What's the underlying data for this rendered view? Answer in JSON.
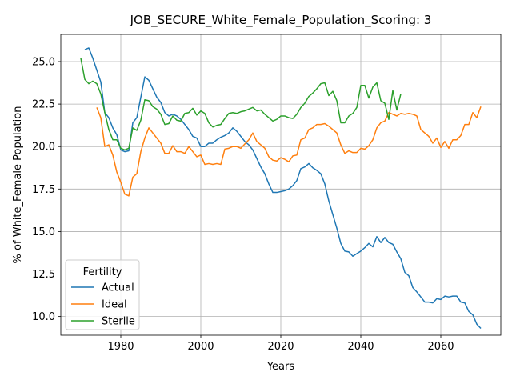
{
  "chart_data": {
    "type": "line",
    "title": "JOB_SECURE_White_Female_Population_Scoring: 3",
    "xlabel": "Years",
    "ylabel": "% of White_Female Population",
    "xlim": [
      1965,
      2075
    ],
    "ylim": [
      8.9,
      26.6
    ],
    "xticks": [
      1980,
      2000,
      2020,
      2040,
      2060
    ],
    "yticks": [
      10.0,
      12.5,
      15.0,
      17.5,
      20.0,
      22.5,
      25.0
    ],
    "grid": true,
    "legend": {
      "title": "Fertility",
      "placement": "lower-left"
    },
    "series": [
      {
        "name": "Actual",
        "color": "#1f77b4",
        "points": [
          [
            1971,
            25.7
          ],
          [
            1972,
            25.8
          ],
          [
            1973,
            25.2
          ],
          [
            1974,
            24.5
          ],
          [
            1975,
            23.8
          ],
          [
            1976,
            22.0
          ],
          [
            1977,
            21.7
          ],
          [
            1978,
            21.1
          ],
          [
            1979,
            20.7
          ],
          [
            1980,
            19.8
          ],
          [
            1981,
            19.7
          ],
          [
            1982,
            19.75
          ],
          [
            1983,
            21.4
          ],
          [
            1984,
            21.7
          ],
          [
            1985,
            22.9
          ],
          [
            1986,
            24.1
          ],
          [
            1987,
            23.9
          ],
          [
            1988,
            23.4
          ],
          [
            1989,
            22.9
          ],
          [
            1990,
            22.6
          ],
          [
            1991,
            22.0
          ],
          [
            1992,
            21.8
          ],
          [
            1993,
            21.9
          ],
          [
            1994,
            21.8
          ],
          [
            1995,
            21.6
          ],
          [
            1996,
            21.3
          ],
          [
            1997,
            21.0
          ],
          [
            1998,
            20.6
          ],
          [
            1999,
            20.5
          ],
          [
            2000,
            20.0
          ],
          [
            2001,
            20.0
          ],
          [
            2002,
            20.2
          ],
          [
            2003,
            20.2
          ],
          [
            2004,
            20.4
          ],
          [
            2005,
            20.55
          ],
          [
            2006,
            20.65
          ],
          [
            2007,
            20.8
          ],
          [
            2008,
            21.1
          ],
          [
            2009,
            20.9
          ],
          [
            2010,
            20.6
          ],
          [
            2011,
            20.3
          ],
          [
            2012,
            20.1
          ],
          [
            2013,
            19.8
          ],
          [
            2014,
            19.3
          ],
          [
            2015,
            18.8
          ],
          [
            2016,
            18.4
          ],
          [
            2017,
            17.8
          ],
          [
            2018,
            17.3
          ],
          [
            2019,
            17.3
          ],
          [
            2020,
            17.35
          ],
          [
            2021,
            17.4
          ],
          [
            2022,
            17.5
          ],
          [
            2023,
            17.7
          ],
          [
            2024,
            18.0
          ],
          [
            2025,
            18.7
          ],
          [
            2026,
            18.8
          ],
          [
            2027,
            19.0
          ],
          [
            2028,
            18.75
          ],
          [
            2029,
            18.6
          ],
          [
            2030,
            18.4
          ],
          [
            2031,
            17.8
          ],
          [
            2032,
            16.8
          ],
          [
            2033,
            16.0
          ],
          [
            2034,
            15.2
          ],
          [
            2035,
            14.3
          ],
          [
            2036,
            13.85
          ],
          [
            2037,
            13.8
          ],
          [
            2038,
            13.55
          ],
          [
            2039,
            13.7
          ],
          [
            2040,
            13.85
          ],
          [
            2041,
            14.05
          ],
          [
            2042,
            14.3
          ],
          [
            2043,
            14.1
          ],
          [
            2044,
            14.7
          ],
          [
            2045,
            14.35
          ],
          [
            2046,
            14.65
          ],
          [
            2047,
            14.35
          ],
          [
            2048,
            14.25
          ],
          [
            2049,
            13.8
          ],
          [
            2050,
            13.4
          ],
          [
            2051,
            12.6
          ],
          [
            2052,
            12.4
          ],
          [
            2053,
            11.7
          ],
          [
            2054,
            11.45
          ],
          [
            2055,
            11.15
          ],
          [
            2056,
            10.85
          ],
          [
            2057,
            10.85
          ],
          [
            2058,
            10.8
          ],
          [
            2059,
            11.05
          ],
          [
            2060,
            11.0
          ],
          [
            2061,
            11.2
          ],
          [
            2062,
            11.15
          ],
          [
            2063,
            11.2
          ],
          [
            2064,
            11.2
          ],
          [
            2065,
            10.85
          ],
          [
            2066,
            10.8
          ],
          [
            2067,
            10.3
          ],
          [
            2068,
            10.1
          ],
          [
            2069,
            9.55
          ],
          [
            2070,
            9.3
          ]
        ]
      },
      {
        "name": "Ideal",
        "color": "#ff7f0e",
        "points": [
          [
            1974,
            22.3
          ],
          [
            1975,
            21.7
          ],
          [
            1976,
            20.0
          ],
          [
            1977,
            20.1
          ],
          [
            1978,
            19.5
          ],
          [
            1979,
            18.5
          ],
          [
            1980,
            17.9
          ],
          [
            1981,
            17.2
          ],
          [
            1982,
            17.1
          ],
          [
            1983,
            18.2
          ],
          [
            1984,
            18.4
          ],
          [
            1985,
            19.7
          ],
          [
            1986,
            20.5
          ],
          [
            1987,
            21.1
          ],
          [
            1988,
            20.8
          ],
          [
            1989,
            20.5
          ],
          [
            1990,
            20.2
          ],
          [
            1991,
            19.6
          ],
          [
            1992,
            19.6
          ],
          [
            1993,
            20.05
          ],
          [
            1994,
            19.7
          ],
          [
            1995,
            19.7
          ],
          [
            1996,
            19.6
          ],
          [
            1997,
            20.0
          ],
          [
            1998,
            19.7
          ],
          [
            1999,
            19.4
          ],
          [
            2000,
            19.5
          ],
          [
            2001,
            18.95
          ],
          [
            2002,
            19.0
          ],
          [
            2003,
            18.95
          ],
          [
            2004,
            19.0
          ],
          [
            2005,
            18.95
          ],
          [
            2006,
            19.85
          ],
          [
            2007,
            19.9
          ],
          [
            2008,
            20.0
          ],
          [
            2009,
            20.0
          ],
          [
            2010,
            19.9
          ],
          [
            2011,
            20.15
          ],
          [
            2012,
            20.4
          ],
          [
            2013,
            20.8
          ],
          [
            2014,
            20.3
          ],
          [
            2015,
            20.1
          ],
          [
            2016,
            19.9
          ],
          [
            2017,
            19.4
          ],
          [
            2018,
            19.2
          ],
          [
            2019,
            19.15
          ],
          [
            2020,
            19.35
          ],
          [
            2021,
            19.25
          ],
          [
            2022,
            19.1
          ],
          [
            2023,
            19.45
          ],
          [
            2024,
            19.5
          ],
          [
            2025,
            20.4
          ],
          [
            2026,
            20.5
          ],
          [
            2027,
            21.0
          ],
          [
            2028,
            21.1
          ],
          [
            2029,
            21.3
          ],
          [
            2030,
            21.3
          ],
          [
            2031,
            21.35
          ],
          [
            2032,
            21.2
          ],
          [
            2033,
            21.0
          ],
          [
            2034,
            20.8
          ],
          [
            2035,
            20.1
          ],
          [
            2036,
            19.6
          ],
          [
            2037,
            19.75
          ],
          [
            2038,
            19.65
          ],
          [
            2039,
            19.65
          ],
          [
            2040,
            19.9
          ],
          [
            2041,
            19.85
          ],
          [
            2042,
            20.05
          ],
          [
            2043,
            20.4
          ],
          [
            2044,
            21.1
          ],
          [
            2045,
            21.4
          ],
          [
            2046,
            21.5
          ],
          [
            2047,
            22.0
          ],
          [
            2048,
            21.9
          ],
          [
            2049,
            21.8
          ],
          [
            2050,
            21.95
          ],
          [
            2051,
            21.9
          ],
          [
            2052,
            21.95
          ],
          [
            2053,
            21.9
          ],
          [
            2054,
            21.8
          ],
          [
            2055,
            21.0
          ],
          [
            2056,
            20.8
          ],
          [
            2057,
            20.6
          ],
          [
            2058,
            20.2
          ],
          [
            2059,
            20.5
          ],
          [
            2060,
            19.95
          ],
          [
            2061,
            20.3
          ],
          [
            2062,
            19.9
          ],
          [
            2063,
            20.4
          ],
          [
            2064,
            20.4
          ],
          [
            2065,
            20.65
          ],
          [
            2066,
            21.3
          ],
          [
            2067,
            21.3
          ],
          [
            2068,
            22.0
          ],
          [
            2069,
            21.7
          ],
          [
            2070,
            22.35
          ]
        ]
      },
      {
        "name": "Sterile",
        "color": "#2ca02c",
        "points": [
          [
            1970,
            25.2
          ],
          [
            1971,
            23.95
          ],
          [
            1972,
            23.7
          ],
          [
            1973,
            23.85
          ],
          [
            1974,
            23.7
          ],
          [
            1975,
            23.1
          ],
          [
            1976,
            22.0
          ],
          [
            1977,
            21.0
          ],
          [
            1978,
            20.4
          ],
          [
            1979,
            20.4
          ],
          [
            1980,
            19.9
          ],
          [
            1981,
            19.8
          ],
          [
            1982,
            19.9
          ],
          [
            1983,
            21.1
          ],
          [
            1984,
            20.95
          ],
          [
            1985,
            21.55
          ],
          [
            1986,
            22.75
          ],
          [
            1987,
            22.7
          ],
          [
            1988,
            22.35
          ],
          [
            1989,
            22.2
          ],
          [
            1990,
            21.9
          ],
          [
            1991,
            21.3
          ],
          [
            1992,
            21.35
          ],
          [
            1993,
            21.8
          ],
          [
            1994,
            21.55
          ],
          [
            1995,
            21.5
          ],
          [
            1996,
            21.95
          ],
          [
            1997,
            22.0
          ],
          [
            1998,
            22.25
          ],
          [
            1999,
            21.85
          ],
          [
            2000,
            22.1
          ],
          [
            2001,
            21.95
          ],
          [
            2002,
            21.4
          ],
          [
            2003,
            21.15
          ],
          [
            2004,
            21.25
          ],
          [
            2005,
            21.3
          ],
          [
            2006,
            21.65
          ],
          [
            2007,
            21.95
          ],
          [
            2008,
            22.0
          ],
          [
            2009,
            21.95
          ],
          [
            2010,
            22.05
          ],
          [
            2011,
            22.1
          ],
          [
            2012,
            22.2
          ],
          [
            2013,
            22.3
          ],
          [
            2014,
            22.1
          ],
          [
            2015,
            22.15
          ],
          [
            2016,
            21.9
          ],
          [
            2017,
            21.7
          ],
          [
            2018,
            21.5
          ],
          [
            2019,
            21.6
          ],
          [
            2020,
            21.8
          ],
          [
            2021,
            21.8
          ],
          [
            2022,
            21.7
          ],
          [
            2023,
            21.65
          ],
          [
            2024,
            21.9
          ],
          [
            2025,
            22.3
          ],
          [
            2026,
            22.55
          ],
          [
            2027,
            22.95
          ],
          [
            2028,
            23.15
          ],
          [
            2029,
            23.4
          ],
          [
            2030,
            23.7
          ],
          [
            2031,
            23.75
          ],
          [
            2032,
            23.0
          ],
          [
            2033,
            23.25
          ],
          [
            2034,
            22.7
          ],
          [
            2035,
            21.4
          ],
          [
            2036,
            21.4
          ],
          [
            2037,
            21.8
          ],
          [
            2038,
            21.95
          ],
          [
            2039,
            22.3
          ],
          [
            2040,
            23.6
          ],
          [
            2041,
            23.6
          ],
          [
            2042,
            22.85
          ],
          [
            2043,
            23.5
          ],
          [
            2044,
            23.75
          ],
          [
            2045,
            22.7
          ],
          [
            2046,
            22.55
          ],
          [
            2047,
            21.6
          ],
          [
            2048,
            23.3
          ],
          [
            2049,
            22.15
          ],
          [
            2050,
            23.1
          ]
        ]
      }
    ]
  }
}
